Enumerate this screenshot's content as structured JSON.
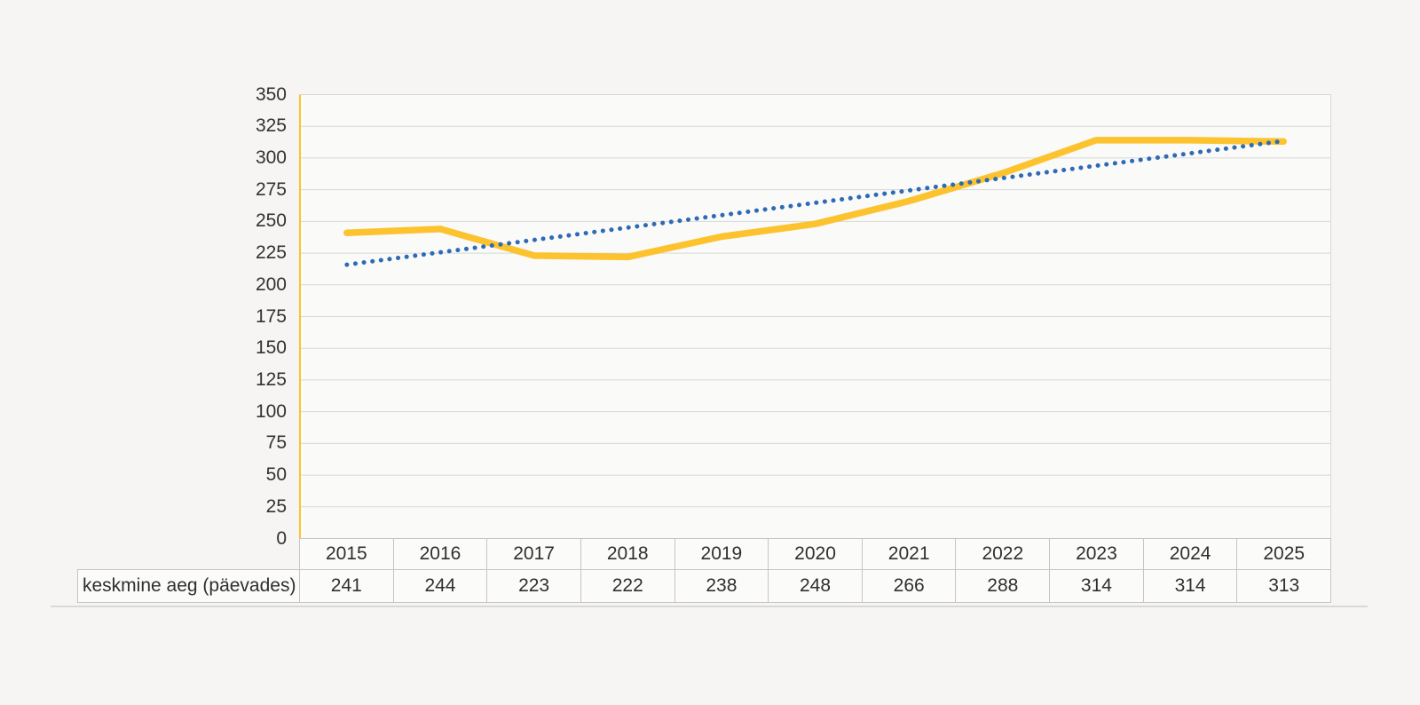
{
  "chart_data": {
    "type": "line",
    "title": "",
    "xlabel": "",
    "ylabel": "",
    "categories": [
      "2015",
      "2016",
      "2017",
      "2018",
      "2019",
      "2020",
      "2021",
      "2022",
      "2023",
      "2024",
      "2025"
    ],
    "series": [
      {
        "name": "keskmine aeg (päevades)",
        "values": [
          241,
          244,
          223,
          222,
          238,
          248,
          266,
          288,
          314,
          314,
          313
        ],
        "color": "#FCC32F",
        "style": "solid",
        "width": 7.5
      },
      {
        "name": "linear-trendline",
        "type": "linear_trendline",
        "endpoint_values": [
          215.9,
          313.4
        ],
        "color": "#2E6BB5",
        "style": "dotted",
        "width": 5
      }
    ],
    "ylim": [
      0,
      350
    ],
    "ytick_step": 25,
    "grid": "horizontal-only",
    "legend_position": "none",
    "data_table": {
      "row_label": "keskmine aeg (päevades)",
      "years": [
        "2015",
        "2016",
        "2017",
        "2018",
        "2019",
        "2020",
        "2021",
        "2022",
        "2023",
        "2024",
        "2025"
      ],
      "values_text": [
        "241",
        "244",
        "223",
        "222",
        "238",
        "248",
        "266",
        "288",
        "314",
        "314",
        "313"
      ]
    }
  },
  "colors": {
    "background": "#F6F5F3",
    "plot_background": "#FAFAF9",
    "gridline": "#D9D8D6",
    "table_border": "#C6C5C3",
    "cell_background": "#FBFBFA",
    "text": "#302F2D",
    "series_yellow": "#FCC32F",
    "trendline_blue": "#2E6BB5",
    "axis_line_yellow": "#FCC32F"
  }
}
